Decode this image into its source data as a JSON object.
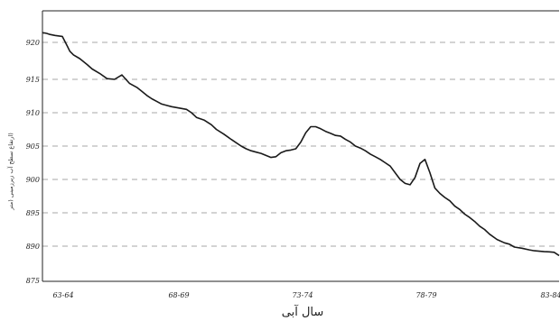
{
  "chart_data": {
    "type": "line",
    "title": "",
    "xlabel": "سال آبی",
    "ylabel": "(ارتفاع سطح آب زیرزمینی (متر",
    "x_ticks": [
      "63-64",
      "68-69",
      "73-74",
      "78-79",
      "83-84"
    ],
    "y_ticks": [
      875,
      890,
      895,
      900,
      905,
      910,
      915,
      920
    ],
    "ylim": [
      875,
      922
    ],
    "grid": "horizontal dashed",
    "series": [
      {
        "name": "",
        "x": [
          0,
          0.05,
          0.1,
          0.18,
          0.3,
          0.5,
          0.8,
          1.0,
          1.1,
          1.25,
          1.5,
          1.8,
          2.0,
          2.3,
          2.6,
          2.9,
          3.2,
          3.5,
          3.8,
          4.0,
          4.2,
          4.4,
          4.6,
          4.8,
          5.0,
          5.2,
          5.5,
          5.8,
          6.0,
          6.2,
          6.5,
          6.8,
          7.0,
          7.3,
          7.6,
          7.8,
          8.0,
          8.2,
          8.4,
          8.6,
          8.8,
          9.0,
          9.2,
          9.4,
          9.6,
          9.8,
          10.0,
          10.2,
          10.4,
          10.6,
          10.8,
          11.0,
          11.2,
          11.4,
          11.6,
          11.8,
          12.0,
          12.2,
          12.4,
          12.6,
          12.8,
          13.0,
          13.2,
          13.4,
          13.6,
          13.8,
          14.0,
          14.2,
          14.4,
          14.6,
          14.8,
          15.0,
          15.2,
          15.4,
          15.6,
          15.8,
          16.0,
          16.2,
          16.4,
          16.6,
          16.8,
          17.0,
          17.2,
          17.4,
          17.6,
          17.8,
          18.0,
          18.3,
          18.6,
          18.8,
          19.0,
          19.3,
          19.6,
          19.8,
          20.0,
          20.2,
          20.4,
          20.6,
          20.8
        ],
        "values": [
          922,
          921.9,
          921.9,
          921.8,
          921.6,
          921.4,
          921.2,
          919.5,
          918.8,
          918.3,
          917.8,
          917.0,
          916.4,
          915.8,
          915.1,
          915.0,
          915.6,
          914.4,
          913.8,
          913.2,
          912.6,
          912.1,
          911.7,
          911.3,
          911.1,
          910.9,
          910.7,
          910.5,
          910.0,
          909.3,
          908.9,
          908.2,
          907.5,
          906.8,
          906.0,
          905.5,
          905.0,
          904.6,
          904.3,
          904.1,
          903.9,
          903.6,
          903.3,
          903.4,
          904.0,
          904.3,
          904.4,
          904.6,
          905.6,
          907.0,
          907.9,
          907.9,
          907.6,
          907.2,
          906.9,
          906.6,
          906.5,
          906.0,
          905.6,
          905.0,
          904.7,
          904.3,
          903.8,
          903.4,
          903.0,
          902.5,
          902.0,
          901.0,
          900.0,
          899.4,
          899.2,
          900.3,
          902.4,
          903.0,
          901.0,
          898.7,
          897.9,
          897.3,
          896.8,
          896.0,
          895.5,
          894.8,
          894.3,
          893.7,
          893.0,
          892.5,
          891.8,
          891.0,
          890.5,
          890.3,
          889.6,
          889.1,
          888.4,
          888.0,
          887.8,
          887.6,
          887.5,
          887.3,
          885.9
        ]
      }
    ]
  }
}
